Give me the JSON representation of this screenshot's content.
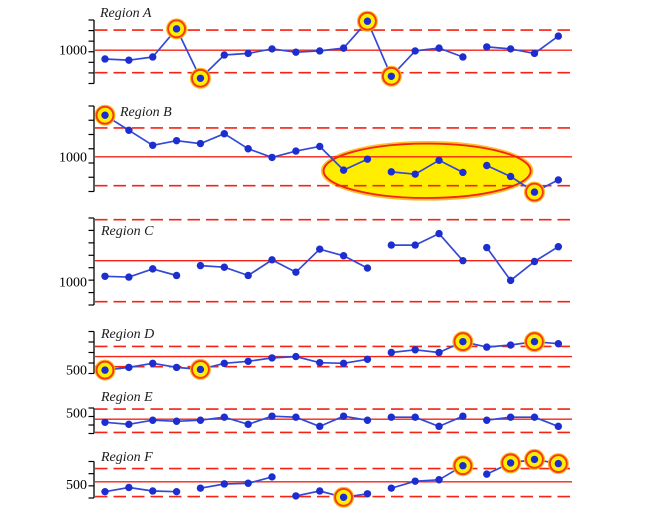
{
  "figure": {
    "kind": "control-chart small multiples",
    "x_points_per_region": 20
  },
  "colors": {
    "limit_red": "#f42314",
    "center_red": "#f42314",
    "series_line_blue": "#3448d6",
    "point_blue": "#1c2ed0",
    "highlight_yellow": "#ffee00",
    "ring_red": "#f43b19",
    "ring_orange": "#ffb300",
    "axis_black": "#000000",
    "label_text": "#1c1c1c"
  },
  "chart_data": {
    "type": "line",
    "subtype": "individuals control charts, one panel per region",
    "legend_position": "none",
    "grid": false,
    "regions": [
      {
        "name": "Region A",
        "axis_label": "1000",
        "center": 1000,
        "ucl": 1250,
        "lcl": 720,
        "ylim": [
          585,
          1375
        ],
        "values": [
          890,
          875,
          915,
          1265,
          650,
          940,
          960,
          1015,
          975,
          990,
          1025,
          1360,
          675,
          990,
          1025,
          915,
          1040,
          1015,
          960,
          1175
        ],
        "circled_points": [
          3,
          4,
          11,
          12
        ],
        "segments": [
          [
            0,
            15
          ],
          [
            16,
            19
          ]
        ]
      },
      {
        "name": "Region B",
        "axis_label": "1000",
        "center": 1000,
        "ucl": 1250,
        "lcl": 750,
        "ylim": [
          700,
          1440
        ],
        "values": [
          1360,
          1230,
          1100,
          1140,
          1115,
          1200,
          1070,
          995,
          1050,
          1090,
          885,
          980,
          870,
          850,
          970,
          865,
          925,
          830,
          695,
          800
        ],
        "circled_points": [
          0,
          18
        ],
        "segments": [
          [
            0,
            11
          ],
          [
            12,
            15
          ],
          [
            16,
            19
          ]
        ]
      },
      {
        "name": "Region C",
        "axis_label": "1000",
        "center": 1130,
        "ucl": 1380,
        "lcl": 880,
        "ylim": [
          860,
          1390
        ],
        "values": [
          1035,
          1030,
          1080,
          1040,
          1100,
          1090,
          1040,
          1135,
          1060,
          1200,
          1160,
          1085,
          1225,
          1225,
          1295,
          1130,
          1210,
          1010,
          1125,
          1215
        ],
        "circled_points": [],
        "segments": [
          [
            0,
            3
          ],
          [
            4,
            11
          ],
          [
            12,
            15
          ],
          [
            16,
            19
          ]
        ]
      },
      {
        "name": "Region D",
        "axis_label": "500",
        "center": 600,
        "ucl": 675,
        "lcl": 525,
        "ylim": [
          475,
          785
        ],
        "values": [
          500,
          520,
          550,
          520,
          505,
          550,
          565,
          590,
          600,
          555,
          550,
          580,
          630,
          650,
          630,
          710,
          670,
          685,
          710,
          695
        ],
        "circled_points": [
          0,
          4,
          15,
          18
        ],
        "segments": [
          [
            0,
            11
          ],
          [
            12,
            19
          ]
        ]
      },
      {
        "name": "Region E",
        "axis_label": "500",
        "center": 470,
        "ucl": 520,
        "lcl": 405,
        "ylim": [
          400,
          525
        ],
        "values": [
          455,
          445,
          465,
          460,
          465,
          480,
          445,
          485,
          480,
          435,
          485,
          465,
          480,
          480,
          435,
          485,
          465,
          480,
          480,
          435
        ],
        "circled_points": [],
        "segments": [
          [
            0,
            11
          ],
          [
            12,
            15
          ],
          [
            16,
            19
          ]
        ]
      },
      {
        "name": "Region F",
        "axis_label": "500",
        "center": 520,
        "ucl": 615,
        "lcl": 415,
        "ylim": [
          405,
          665
        ],
        "values": [
          450,
          480,
          455,
          450,
          475,
          505,
          510,
          555,
          420,
          455,
          410,
          435,
          475,
          525,
          535,
          635,
          575,
          655,
          680,
          650
        ],
        "circled_points": [
          10,
          15,
          17,
          18,
          19
        ],
        "segments": [
          [
            0,
            3
          ],
          [
            4,
            7
          ],
          [
            8,
            11
          ],
          [
            12,
            15
          ],
          [
            16,
            19
          ]
        ]
      }
    ],
    "annotations": [
      {
        "region": "Region B",
        "type": "ellipse-highlight",
        "fill": "#ffee00",
        "outline": "#f42314",
        "point_from": 10,
        "point_to": 17,
        "meaning": "run of points below center line circled as a cluster"
      }
    ]
  }
}
